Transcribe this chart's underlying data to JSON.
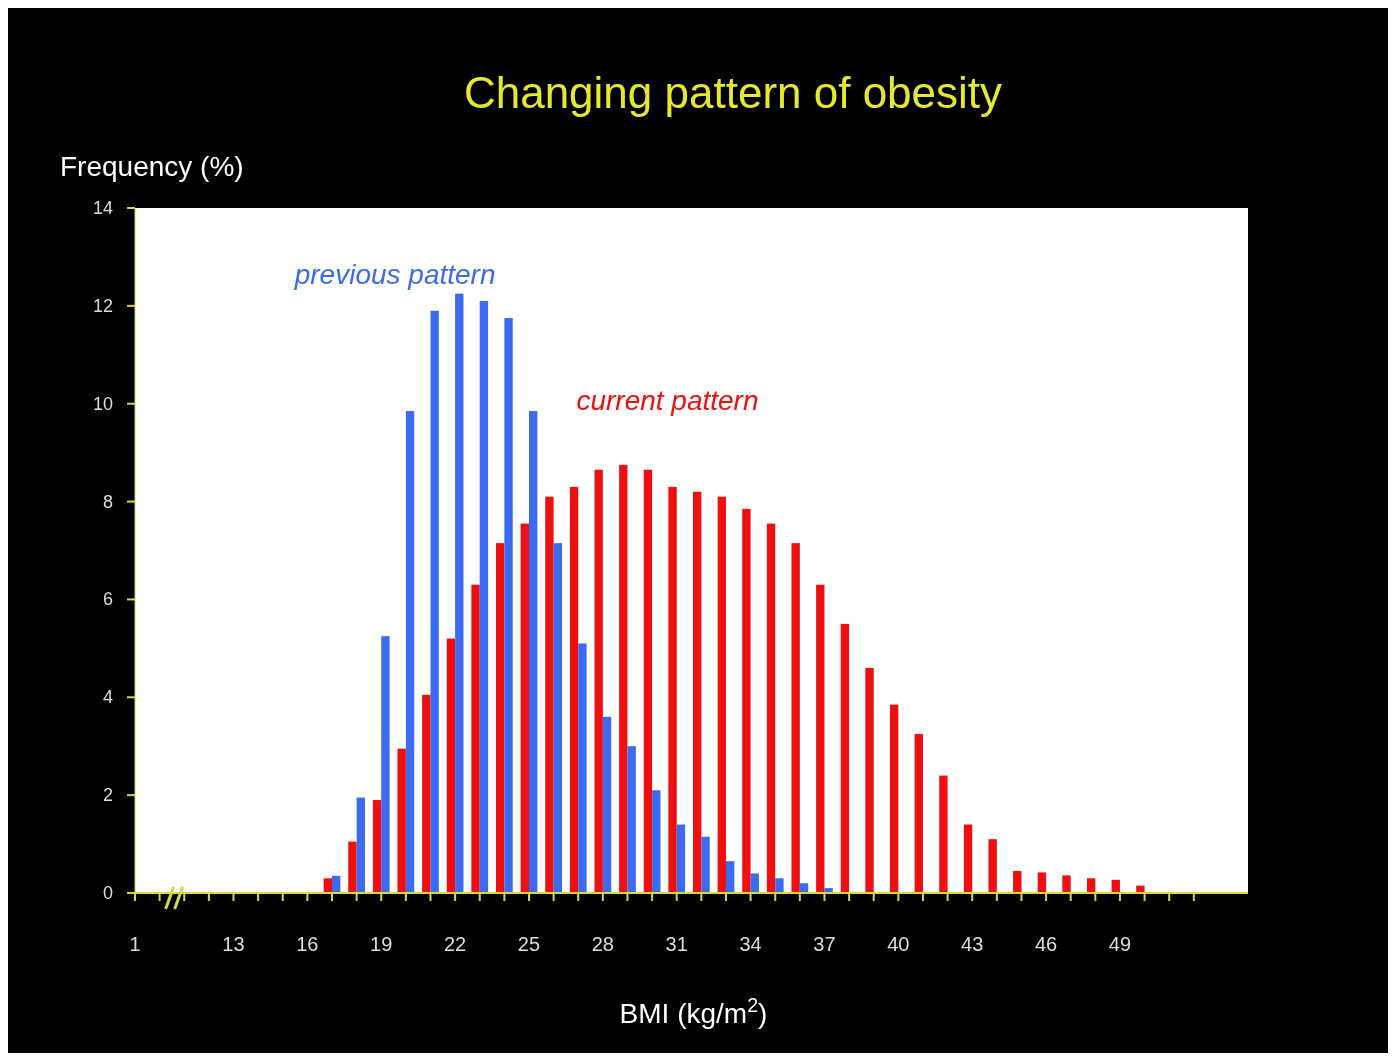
{
  "chart_data": {
    "type": "bar",
    "title": "Changing pattern of obesity",
    "xlabel": "BMI (kg/m$^{2}$)",
    "ylabel": "Frequency (%)",
    "categories": [
      "1",
      null,
      null,
      null,
      "13",
      null,
      null,
      "16",
      null,
      null,
      "19",
      null,
      null,
      "22",
      null,
      null,
      "25",
      null,
      null,
      "28",
      null,
      null,
      "31",
      null,
      null,
      "34",
      null,
      null,
      "37",
      null,
      null,
      "40",
      null,
      null,
      "43",
      null,
      null,
      "46",
      null,
      null,
      "49",
      null,
      null,
      null
    ],
    "series": [
      {
        "name": "current pattern",
        "color": "#ee1010",
        "values": [
          null,
          null,
          null,
          null,
          null,
          null,
          null,
          null,
          0.3,
          1.05,
          1.9,
          2.95,
          4.05,
          5.2,
          6.3,
          7.15,
          7.55,
          8.1,
          8.3,
          8.65,
          8.75,
          8.65,
          8.3,
          8.2,
          8.1,
          7.85,
          7.55,
          7.15,
          6.3,
          5.5,
          4.6,
          3.85,
          3.25,
          2.4,
          1.4,
          1.1,
          0.45,
          0.42,
          0.36,
          0.3,
          0.27,
          0.15,
          null,
          null
        ]
      },
      {
        "name": "previous pattern",
        "color": "#3d6bef",
        "values": [
          null,
          null,
          null,
          null,
          null,
          null,
          null,
          null,
          0.35,
          1.95,
          5.25,
          9.85,
          11.9,
          12.25,
          12.1,
          11.75,
          9.85,
          7.15,
          5.1,
          3.6,
          3.0,
          2.1,
          1.4,
          1.15,
          0.65,
          0.4,
          0.3,
          0.2,
          0.1,
          null,
          null,
          null,
          null,
          null,
          null,
          null,
          null,
          null,
          null,
          null,
          null,
          null,
          null,
          null
        ]
      }
    ],
    "ylim": [
      0,
      14
    ],
    "yticks": [
      0,
      2,
      4,
      6,
      8,
      10,
      12,
      14
    ],
    "grid": false
  }
}
